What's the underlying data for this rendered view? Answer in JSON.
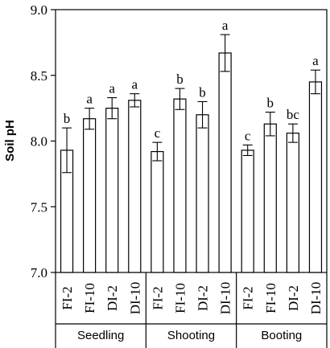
{
  "chart_data": {
    "type": "bar",
    "ylabel": "Soil pH",
    "xlabel": "",
    "ylim": [
      7.0,
      9.0
    ],
    "yticks": [
      "7.0",
      "7.5",
      "8.0",
      "8.5",
      "9.0"
    ],
    "grid": false,
    "groups": [
      {
        "name": "Seedling",
        "bars": [
          {
            "category": "FI-2",
            "value": 7.93,
            "error": 0.17,
            "letter": "b"
          },
          {
            "category": "FI-10",
            "value": 8.17,
            "error": 0.08,
            "letter": "a"
          },
          {
            "category": "DI-2",
            "value": 8.25,
            "error": 0.08,
            "letter": "a"
          },
          {
            "category": "DI-10",
            "value": 8.31,
            "error": 0.05,
            "letter": "a"
          }
        ]
      },
      {
        "name": "Shooting",
        "bars": [
          {
            "category": "FI-2",
            "value": 7.92,
            "error": 0.07,
            "letter": "c"
          },
          {
            "category": "FI-10",
            "value": 8.32,
            "error": 0.08,
            "letter": "b"
          },
          {
            "category": "DI-2",
            "value": 8.2,
            "error": 0.1,
            "letter": "b"
          },
          {
            "category": "DI-10",
            "value": 8.67,
            "error": 0.14,
            "letter": "a"
          }
        ]
      },
      {
        "name": "Booting",
        "bars": [
          {
            "category": "FI-2",
            "value": 7.93,
            "error": 0.04,
            "letter": "c"
          },
          {
            "category": "FI-10",
            "value": 8.13,
            "error": 0.09,
            "letter": "b"
          },
          {
            "category": "DI-2",
            "value": 8.06,
            "error": 0.07,
            "letter": "bc"
          },
          {
            "category": "DI-10",
            "value": 8.45,
            "error": 0.09,
            "letter": "a"
          }
        ]
      }
    ]
  }
}
